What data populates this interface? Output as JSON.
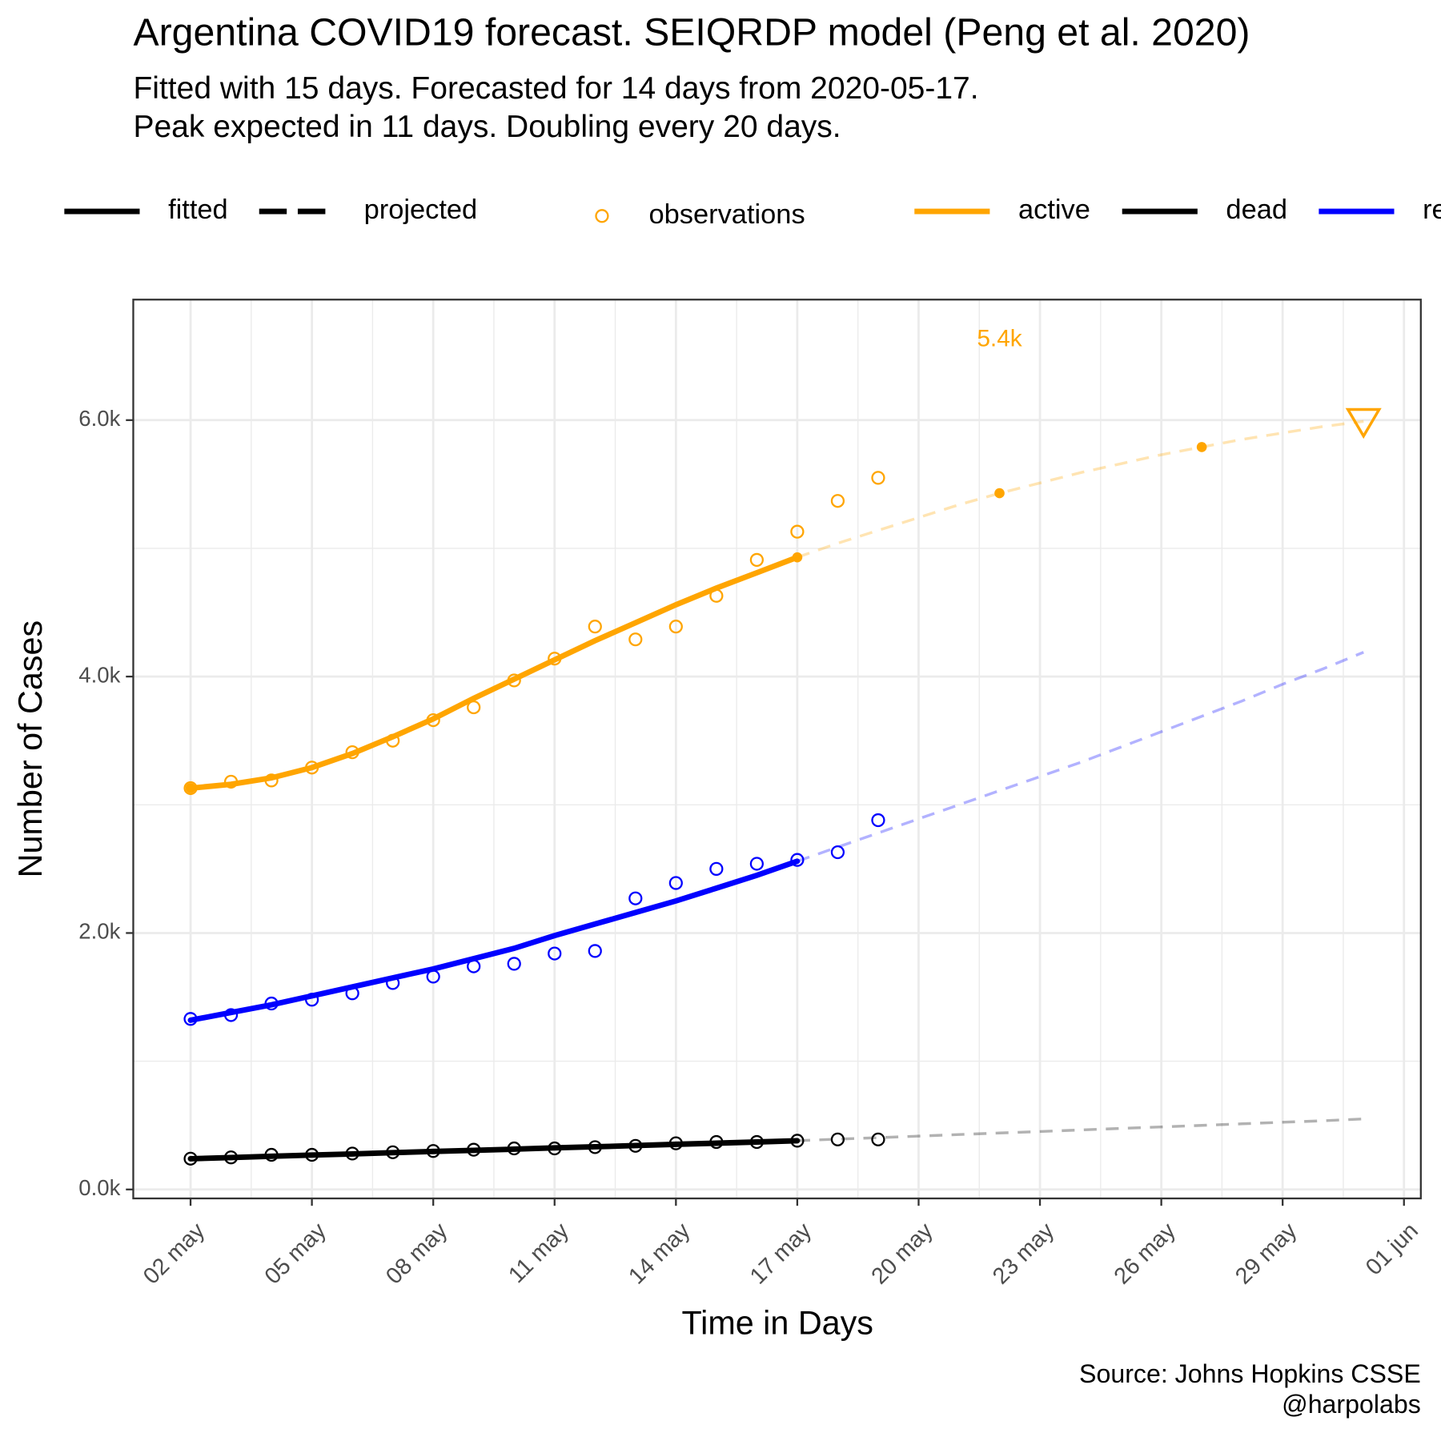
{
  "chart_data": {
    "type": "line",
    "title": "Argentina COVID19 forecast. SEIQRDP model (Peng et al. 2020)",
    "subtitle": [
      "Fitted with 15 days. Forecasted for 14 days from 2020-05-17.",
      "Peak expected in 11 days. Doubling every 20 days."
    ],
    "x_label": "Time in Days",
    "y_label": "Number of Cases",
    "caption": [
      "Source: Johns Hopkins CSSE",
      "@harpolabs"
    ],
    "legend_labels": {
      "fitted": "fitted",
      "projected": "projected",
      "observations": "observations"
    },
    "xlim": [
      "2020-04-30T14:00Z",
      "2020-06-01T10:00Z"
    ],
    "xticks": [
      {
        "value": "2020-05-02",
        "label": "02 may"
      },
      {
        "value": "2020-05-05",
        "label": "05 may"
      },
      {
        "value": "2020-05-08",
        "label": "08 may"
      },
      {
        "value": "2020-05-11",
        "label": "11 may"
      },
      {
        "value": "2020-05-14",
        "label": "14 may"
      },
      {
        "value": "2020-05-17",
        "label": "17 may"
      },
      {
        "value": "2020-05-20",
        "label": "20 may"
      },
      {
        "value": "2020-05-23",
        "label": "23 may"
      },
      {
        "value": "2020-05-26",
        "label": "26 may"
      },
      {
        "value": "2020-05-29",
        "label": "29 may"
      },
      {
        "value": "2020-06-01",
        "label": "01 jun"
      }
    ],
    "ylim": [
      -70,
      6940
    ],
    "yticks": [
      {
        "value": 0,
        "label": "0.0k"
      },
      {
        "value": 2000,
        "label": "2.0k"
      },
      {
        "value": 4000,
        "label": "4.0k"
      },
      {
        "value": 6000,
        "label": "6.0k"
      }
    ],
    "grid": true,
    "x_fitted": [
      "2020-05-02",
      "2020-05-03",
      "2020-05-04",
      "2020-05-05",
      "2020-05-06",
      "2020-05-07",
      "2020-05-08",
      "2020-05-09",
      "2020-05-10",
      "2020-05-11",
      "2020-05-12",
      "2020-05-13",
      "2020-05-14",
      "2020-05-15",
      "2020-05-16",
      "2020-05-17"
    ],
    "x_projected": [
      "2020-05-17",
      "2020-05-18",
      "2020-05-19",
      "2020-05-20",
      "2020-05-21",
      "2020-05-22",
      "2020-05-23",
      "2020-05-24",
      "2020-05-25",
      "2020-05-26",
      "2020-05-27",
      "2020-05-28",
      "2020-05-29",
      "2020-05-30",
      "2020-05-31"
    ],
    "x_observed": [
      "2020-05-02",
      "2020-05-03",
      "2020-05-04",
      "2020-05-05",
      "2020-05-06",
      "2020-05-07",
      "2020-05-08",
      "2020-05-09",
      "2020-05-10",
      "2020-05-11",
      "2020-05-12",
      "2020-05-13",
      "2020-05-14",
      "2020-05-15",
      "2020-05-16",
      "2020-05-17",
      "2020-05-18",
      "2020-05-19"
    ],
    "series": [
      {
        "name": "active",
        "color": "#FFA500",
        "fitted": [
          3130,
          3160,
          3210,
          3290,
          3400,
          3530,
          3670,
          3830,
          3980,
          4130,
          4280,
          4420,
          4560,
          4690,
          4810,
          4930
        ],
        "projected": [
          4930,
          5040,
          5140,
          5240,
          5340,
          5430,
          5510,
          5590,
          5660,
          5730,
          5790,
          5850,
          5900,
          5950,
          5990
        ],
        "observed": [
          3130,
          3180,
          3190,
          3290,
          3410,
          3500,
          3660,
          3760,
          3970,
          4140,
          4390,
          4290,
          4390,
          4630,
          4910,
          5130,
          5370,
          5550
        ]
      },
      {
        "name": "dead",
        "color": "#000000",
        "fitted": [
          240,
          249,
          259,
          268,
          277,
          287,
          296,
          305,
          314,
          324,
          333,
          342,
          352,
          361,
          370,
          380
        ],
        "projected": [
          380,
          392,
          404,
          416,
          428,
          440,
          452,
          464,
          476,
          488,
          500,
          512,
          524,
          536,
          550
        ],
        "observed": [
          240,
          250,
          270,
          270,
          280,
          290,
          300,
          310,
          320,
          320,
          330,
          340,
          360,
          370,
          370,
          380,
          390,
          390
        ]
      },
      {
        "name": "recovered",
        "color": "#0000FF",
        "fitted": [
          1320,
          1380,
          1440,
          1510,
          1580,
          1650,
          1720,
          1800,
          1880,
          1980,
          2070,
          2160,
          2250,
          2350,
          2450,
          2560
        ],
        "projected": [
          2560,
          2670,
          2780,
          2890,
          3000,
          3110,
          3220,
          3330,
          3450,
          3570,
          3690,
          3810,
          3940,
          4060,
          4190
        ],
        "observed": [
          1330,
          1360,
          1450,
          1480,
          1530,
          1610,
          1660,
          1740,
          1760,
          1840,
          1860,
          2270,
          2390,
          2500,
          2540,
          2570,
          2630,
          2880
        ]
      }
    ],
    "markers": [
      {
        "x": "2020-05-02",
        "value": 3130,
        "shape": "dot",
        "color": "#FFA500"
      },
      {
        "x": "2020-05-17",
        "value": 4930,
        "shape": "dot",
        "color": "#FFA500"
      },
      {
        "x": "2020-05-22",
        "value": 5430,
        "shape": "dot",
        "color": "#FFA500"
      },
      {
        "x": "2020-05-27",
        "value": 5790,
        "shape": "dot",
        "color": "#FFA500"
      },
      {
        "x": "2020-05-31",
        "value": 5990,
        "shape": "triangle",
        "color": "#FFA500"
      }
    ],
    "annotations": [
      {
        "x": "2020-05-22",
        "text": "5.4k",
        "color": "#FFA500"
      }
    ]
  }
}
